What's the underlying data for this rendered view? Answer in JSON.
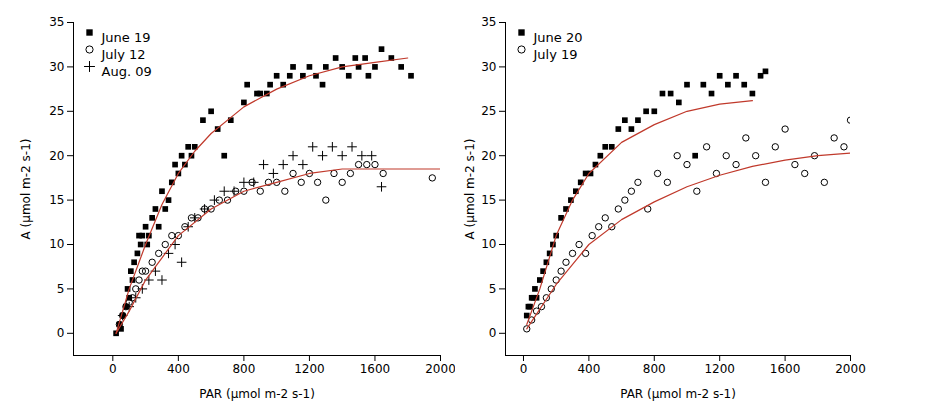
{
  "chart_data": [
    {
      "type": "scatter",
      "x_label": "PAR (μmol m-2 s-1)",
      "y_label": "A (μmol m-2 s-1)",
      "xlim": [
        -240,
        2000
      ],
      "ylim": [
        -2.5,
        35
      ],
      "xticks": [
        0,
        400,
        800,
        1200,
        1600,
        2000
      ],
      "yticks": [
        0,
        5,
        10,
        15,
        20,
        25,
        30,
        35
      ],
      "legend": "top-left",
      "series": [
        {
          "name": "June 19",
          "marker": "square",
          "color": "#000000",
          "x": [
            20,
            40,
            50,
            60,
            80,
            90,
            100,
            110,
            120,
            130,
            150,
            160,
            170,
            180,
            200,
            210,
            220,
            240,
            260,
            280,
            300,
            320,
            340,
            360,
            380,
            400,
            420,
            440,
            460,
            480,
            500,
            550,
            600,
            640,
            680,
            720,
            800,
            820,
            880,
            900,
            940,
            960,
            1000,
            1040,
            1080,
            1100,
            1160,
            1200,
            1240,
            1280,
            1300,
            1360,
            1400,
            1440,
            1480,
            1500,
            1540,
            1560,
            1600,
            1640,
            1700,
            1760,
            1820
          ],
          "values": [
            0,
            1,
            0.5,
            2,
            3,
            5,
            4,
            7,
            6,
            8,
            9,
            11,
            10,
            11,
            12,
            10,
            11,
            13,
            14,
            12,
            16,
            14,
            15,
            17,
            19,
            18,
            20,
            19,
            21,
            20,
            21,
            24,
            25,
            23,
            20,
            24,
            26,
            28,
            27,
            27,
            27,
            28,
            29,
            28,
            29,
            30,
            29,
            30,
            29,
            28,
            30,
            31,
            30,
            29,
            31,
            30,
            31,
            29,
            30,
            32,
            31,
            30,
            29
          ]
        },
        {
          "name": "July 12",
          "marker": "circle",
          "color": "#000000",
          "x": [
            40,
            60,
            80,
            100,
            120,
            140,
            160,
            180,
            200,
            240,
            280,
            320,
            360,
            400,
            440,
            480,
            520,
            560,
            600,
            650,
            700,
            750,
            800,
            850,
            900,
            950,
            1000,
            1050,
            1100,
            1150,
            1200,
            1250,
            1300,
            1350,
            1400,
            1450,
            1500,
            1550,
            1600,
            1650,
            1950
          ],
          "values": [
            1,
            2,
            3,
            3.5,
            4,
            5,
            6,
            7,
            7,
            8,
            9,
            10,
            11,
            11,
            12,
            13,
            13,
            14,
            14,
            15,
            15,
            16,
            16,
            17,
            16,
            17,
            17,
            16,
            18,
            17,
            18,
            17,
            15,
            18,
            17,
            18,
            19,
            19,
            19,
            18,
            17.5
          ]
        },
        {
          "name": "Aug. 09",
          "marker": "plus",
          "color": "#000000",
          "x": [
            60,
            100,
            140,
            180,
            220,
            260,
            300,
            340,
            380,
            420,
            460,
            500,
            560,
            620,
            680,
            740,
            800,
            860,
            920,
            980,
            1040,
            1100,
            1160,
            1220,
            1280,
            1340,
            1400,
            1460,
            1520,
            1580,
            1640
          ],
          "values": [
            2,
            3,
            4,
            5,
            6,
            7,
            6,
            9,
            10,
            8,
            12,
            13,
            14,
            15,
            16,
            16,
            17,
            17,
            19,
            18,
            19,
            20,
            19,
            21,
            20,
            21,
            20,
            21,
            20,
            20,
            16.5
          ]
        },
        {
          "type": "line",
          "line_style": "solid",
          "color": "#c0392b",
          "x": [
            20,
            100,
            200,
            300,
            400,
            500,
            600,
            800,
            1000,
            1200,
            1400,
            1600,
            1800
          ],
          "values": [
            0,
            5,
            10,
            14.5,
            18,
            20.5,
            22.5,
            25.5,
            27.5,
            29,
            30,
            30.5,
            31
          ]
        },
        {
          "type": "line",
          "line_style": "solid",
          "color": "#c0392b",
          "x": [
            20,
            100,
            200,
            300,
            400,
            600,
            800,
            1000,
            1200,
            1400,
            1600,
            2000
          ],
          "values": [
            0,
            2.5,
            6,
            8.5,
            11,
            14,
            16,
            17,
            18,
            18.5,
            18.5,
            18.5
          ]
        }
      ]
    },
    {
      "type": "scatter",
      "x_label": "PAR (μmol m-2 s-1)",
      "y_label": "A (μmol m-2 s-1)",
      "xlim": [
        -110,
        2000
      ],
      "ylim": [
        -2.5,
        35
      ],
      "xticks": [
        0,
        400,
        800,
        1200,
        1600,
        2000
      ],
      "yticks": [
        0,
        5,
        10,
        15,
        20,
        25,
        30,
        35
      ],
      "legend": "top-left",
      "series": [
        {
          "name": "June 20",
          "marker": "square",
          "color": "#000000",
          "x": [
            20,
            30,
            40,
            50,
            60,
            70,
            80,
            100,
            120,
            140,
            160,
            180,
            200,
            230,
            260,
            290,
            320,
            350,
            380,
            410,
            440,
            470,
            500,
            540,
            580,
            620,
            660,
            700,
            750,
            800,
            850,
            900,
            950,
            1000,
            1050,
            1100,
            1150,
            1200,
            1250,
            1300,
            1350,
            1400,
            1450,
            1480
          ],
          "values": [
            2,
            3,
            3,
            4,
            4,
            5,
            4,
            6,
            7,
            8,
            9,
            10,
            11,
            13,
            14,
            15,
            16,
            17,
            18,
            18,
            19,
            20,
            21,
            21,
            23,
            24,
            23,
            24,
            25,
            25,
            27,
            27,
            26,
            28,
            20,
            28,
            27,
            29,
            28,
            29,
            28,
            27,
            29,
            29.5
          ]
        },
        {
          "name": "July 19",
          "marker": "circle",
          "color": "#000000",
          "x": [
            20,
            50,
            80,
            110,
            140,
            170,
            200,
            230,
            260,
            300,
            340,
            380,
            420,
            460,
            500,
            540,
            580,
            620,
            660,
            700,
            760,
            820,
            880,
            940,
            1000,
            1060,
            1120,
            1180,
            1240,
            1300,
            1360,
            1420,
            1480,
            1540,
            1600,
            1660,
            1720,
            1780,
            1840,
            1900,
            1960,
            2000
          ],
          "values": [
            0.5,
            1.5,
            2.5,
            3,
            4,
            5,
            6,
            7,
            8,
            9,
            10,
            9,
            11,
            12,
            13,
            12,
            14,
            15,
            16,
            17,
            14,
            18,
            17,
            20,
            19,
            16,
            21,
            18,
            20,
            19,
            22,
            20,
            17,
            21,
            23,
            19,
            18,
            20,
            17,
            22,
            21,
            24
          ]
        },
        {
          "type": "line",
          "line_style": "solid",
          "color": "#c0392b",
          "x": [
            20,
            100,
            200,
            300,
            400,
            600,
            800,
            1000,
            1200,
            1400
          ],
          "values": [
            1,
            5,
            11,
            15,
            18,
            21.5,
            23.5,
            25,
            25.8,
            26.2
          ]
        },
        {
          "type": "line",
          "line_style": "solid",
          "color": "#c0392b",
          "x": [
            20,
            200,
            400,
            600,
            800,
            1000,
            1200,
            1400,
            1600,
            1800,
            2000
          ],
          "values": [
            0.5,
            5.5,
            10,
            12.8,
            14.8,
            16.5,
            17.8,
            18.8,
            19.5,
            20,
            20.3
          ]
        }
      ]
    }
  ]
}
